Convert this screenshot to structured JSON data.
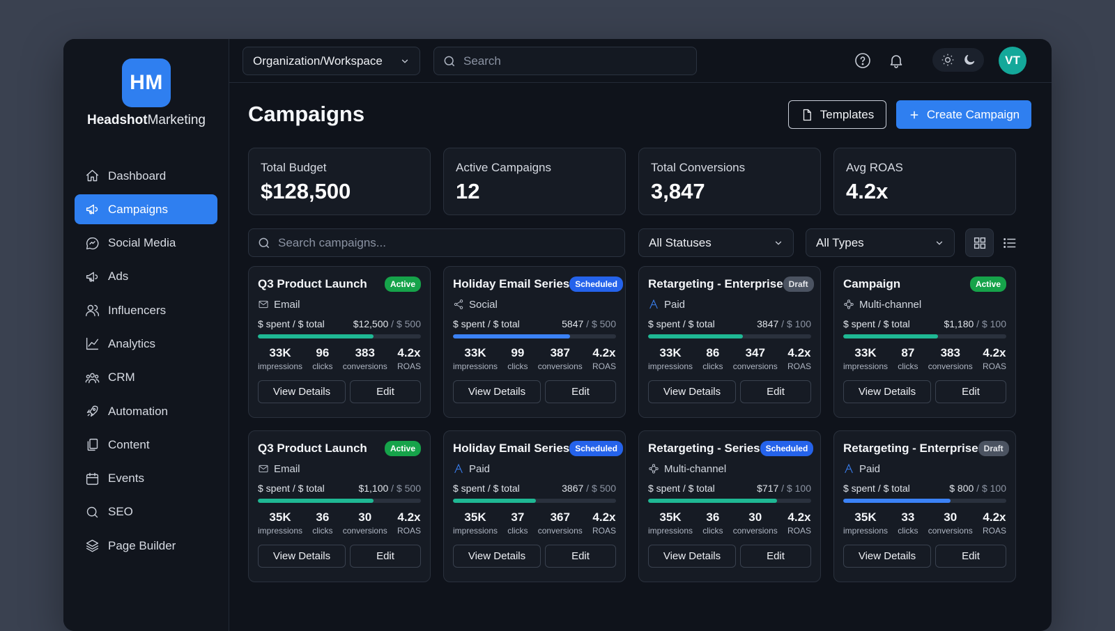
{
  "brand": {
    "initials": "HM",
    "name_bold": "Headshot",
    "name_rest": "Marketing"
  },
  "nav": [
    {
      "label": "Dashboard",
      "icon": "home-icon"
    },
    {
      "label": "Campaigns",
      "icon": "megaphone-icon",
      "active": true
    },
    {
      "label": "Social Media",
      "icon": "chat-icon"
    },
    {
      "label": "Ads",
      "icon": "megaphone-icon"
    },
    {
      "label": "Influencers",
      "icon": "users-icon"
    },
    {
      "label": "Analytics",
      "icon": "chart-icon"
    },
    {
      "label": "CRM",
      "icon": "team-icon"
    },
    {
      "label": "Automation",
      "icon": "rocket-icon"
    },
    {
      "label": "Content",
      "icon": "copy-icon"
    },
    {
      "label": "Events",
      "icon": "calendar-icon"
    },
    {
      "label": "SEO",
      "icon": "search-icon"
    },
    {
      "label": "Page Builder",
      "icon": "layers-icon"
    }
  ],
  "topbar": {
    "workspace": "Organization/Workspace",
    "search_placeholder": "Search",
    "avatar_initials": "VT"
  },
  "page": {
    "title": "Campaigns",
    "templates_label": "Templates",
    "create_label": "Create Campaign"
  },
  "stats": [
    {
      "label": "Total Budget",
      "value": "$128,500"
    },
    {
      "label": "Active Campaigns",
      "value": "12"
    },
    {
      "label": "Total Conversions",
      "value": "3,847"
    },
    {
      "label": "Avg ROAS",
      "value": "4.2x"
    }
  ],
  "filters": {
    "search_placeholder": "Search campaigns...",
    "status": "All Statuses",
    "type": "All Types"
  },
  "colors": {
    "accent": "#2f7ff0",
    "green_bar": "#1fb894",
    "blue_bar": "#3b82f6"
  },
  "card_labels": {
    "spent_label": "$ spent / $ total",
    "impressions": "impressions",
    "clicks": "clicks",
    "conversions": "conversions",
    "roas": "ROAS",
    "view_details": "View Details",
    "edit": "Edit"
  },
  "campaigns": [
    {
      "name": "Q3 Product Launch",
      "status": "Active",
      "status_class": "active",
      "type": "Email",
      "type_icon": "mail-icon",
      "spent": "$12,500",
      "total": " / $ 500",
      "progress": 0.71,
      "bar": "green",
      "impressions": "33K",
      "clicks": "96",
      "conversions": "383",
      "roas": "4.2x"
    },
    {
      "name": "Holiday Email Series",
      "status": "Scheduled",
      "status_class": "scheduled",
      "type": "Social",
      "type_icon": "share-icon",
      "spent": "5847",
      "total": " / $ 500",
      "progress": 0.72,
      "bar": "blue",
      "impressions": "33K",
      "clicks": "99",
      "conversions": "387",
      "roas": "4.2x"
    },
    {
      "name": "Retargeting - Enterprise",
      "status": "Draft",
      "status_class": "draft",
      "type": "Paid",
      "type_icon": "paid-icon",
      "spent": "3847",
      "total": " / $ 100",
      "progress": 0.58,
      "bar": "green",
      "impressions": "33K",
      "clicks": "86",
      "conversions": "347",
      "roas": "4.2x"
    },
    {
      "name": "Campaign",
      "status": "Active",
      "status_class": "active",
      "type": "Multi-channel",
      "type_icon": "network-icon",
      "spent": "$1,180",
      "total": " / $ 100",
      "progress": 0.58,
      "bar": "green",
      "impressions": "33K",
      "clicks": "87",
      "conversions": "383",
      "roas": "4.2x"
    },
    {
      "name": "Q3 Product Launch",
      "status": "Active",
      "status_class": "active",
      "type": "Email",
      "type_icon": "mail-icon",
      "spent": "$1,100",
      "total": " / $ 500",
      "progress": 0.71,
      "bar": "green",
      "impressions": "35K",
      "clicks": "36",
      "conversions": "30",
      "roas": "4.2x"
    },
    {
      "name": "Holiday Email Series",
      "status": "Scheduled",
      "status_class": "scheduled",
      "type": "Paid",
      "type_icon": "paid-icon",
      "spent": "3867",
      "total": " / $ 500",
      "progress": 0.51,
      "bar": "green",
      "impressions": "35K",
      "clicks": "37",
      "conversions": "367",
      "roas": "4.2x"
    },
    {
      "name": "Retargeting - Series",
      "status": "Scheduled",
      "status_class": "scheduled",
      "type": "Multi-channel",
      "type_icon": "network-icon",
      "spent": "$717",
      "total": " / $ 100",
      "progress": 0.79,
      "bar": "green",
      "impressions": "35K",
      "clicks": "36",
      "conversions": "30",
      "roas": "4.2x"
    },
    {
      "name": "Retargeting - Enterprise",
      "status": "Draft",
      "status_class": "draft",
      "type": "Paid",
      "type_icon": "paid-icon",
      "spent": "$ 800",
      "total": " / $ 100",
      "progress": 0.66,
      "bar": "blue",
      "impressions": "35K",
      "clicks": "33",
      "conversions": "30",
      "roas": "4.2x"
    }
  ]
}
